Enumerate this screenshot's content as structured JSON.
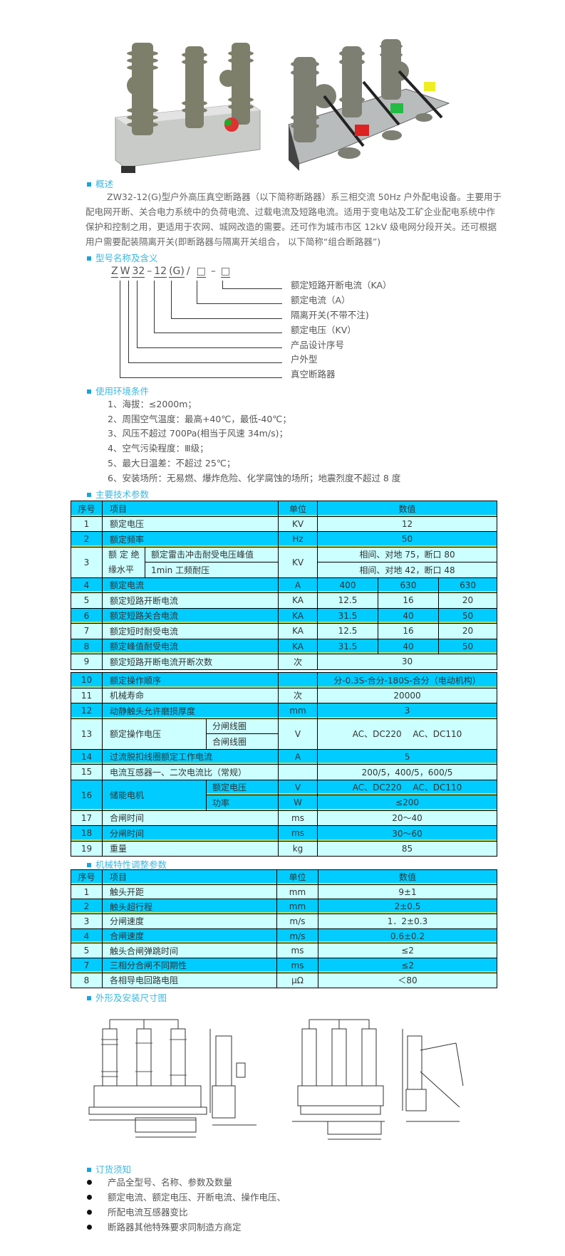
{
  "overview": {
    "heading": "概述",
    "lines": [
      "ZW32-12(G)型户外高压真空断路器（以下简称断路器）系三相交流 50Hz 户外配电设备。主要用于",
      "配电网开断、关合电力系统中的负荷电流、过载电流及短路电流。适用于变电站及工矿企业配电系统中作",
      "保护和控制之用，更适用于农网、城网改造的需要。还可作为城市市区 12kV 级电网分段开关。还可根据",
      "用户需要配装隔离开关(即断路器与隔离开关组合， 以下简称“组合断路器”)"
    ]
  },
  "model": {
    "heading": "型号名称及含义",
    "code": [
      "Z",
      "W",
      "32",
      "–",
      "12",
      "(G)",
      "/",
      "□",
      "–",
      "□"
    ],
    "labels": [
      "额定短路开断电流（KA）",
      "额定电流（A）",
      "隔离开关(不带不注)",
      "额定电压（KV）",
      "产品设计序号",
      "户外型",
      "真空断路器"
    ]
  },
  "environment": {
    "heading": "使用环境条件",
    "items": [
      "1、海拔：≤2000m；",
      "2、周围空气温度：最高+40℃，最低-40℃；",
      "3、风压不超过 700Pa(相当于风速 34m/s)；",
      "4、空气污染程度：Ⅲ级；",
      "5、最大日温差：不超过 25℃；",
      "6、安装场所：无易燃、爆炸危险、化学腐蚀的场所；地震烈度不超过 8 度"
    ]
  },
  "tech": {
    "heading": "主要技术参数",
    "header": [
      "序号",
      "项目",
      "单位",
      "数值"
    ],
    "r1": [
      "1",
      "额定电压",
      "KV",
      "12"
    ],
    "r2": [
      "2",
      "额定频率",
      "Hz",
      "50"
    ],
    "r3": {
      "no": "3",
      "item_a": "额 定 绝",
      "item_b": "缘水平",
      "sub1": "额定雷击冲击耐受电压峰值",
      "sub2": "1min 工频耐压",
      "unit": "KV",
      "val1": "相间、对地 75，断口 80",
      "val2": "相间、对地 42，断口 48"
    },
    "r4": [
      "4",
      "额定电流",
      "A",
      "400",
      "630",
      "630"
    ],
    "r5": [
      "5",
      "额定短路开断电流",
      "KA",
      "12.5",
      "16",
      "20"
    ],
    "r6": [
      "6",
      "额定短路关合电流",
      "KA",
      "31.5",
      "40",
      "50"
    ],
    "r7": [
      "7",
      "额定短时耐受电流",
      "KA",
      "12.5",
      "16",
      "20"
    ],
    "r8": [
      "8",
      "额定峰值耐受电流",
      "KA",
      "31.5",
      "40",
      "50"
    ],
    "r9": [
      "9",
      "额定短路开断电流开断次数",
      "次",
      "30"
    ],
    "r10": [
      "10",
      "额定操作顺序",
      "",
      "分-0.3S-合分-180S-合分（电动机构）"
    ],
    "r11": [
      "11",
      "机械寿命",
      "次",
      "20000"
    ],
    "r12": [
      "12",
      "动静触头允许磨损厚度",
      "mm",
      "3"
    ],
    "r13": {
      "no": "13",
      "item": "额定操作电压",
      "sub1": "分闸线圈",
      "sub2": "合闸线圈",
      "unit": "V",
      "val": "AC、DC220　 AC、DC110"
    },
    "r14": [
      "14",
      "过流脱扣线圈额定工作电流",
      "A",
      "5"
    ],
    "r15": [
      "15",
      "电流互感器一、二次电流比（常规）",
      "",
      "200/5，400/5，600/5"
    ],
    "r16": {
      "no": "16",
      "item": "储能电机",
      "sub1": "额定电压",
      "unit1": "V",
      "val1": "AC、DC220　 AC、DC110",
      "sub2": "功率",
      "unit2": "W",
      "val2": "≤200"
    },
    "r17": [
      "17",
      "合闸时间",
      "ms",
      "20～40"
    ],
    "r18": [
      "18",
      "分闸时间",
      "ms",
      "30～60"
    ],
    "r19": [
      "19",
      "重量",
      "kg",
      "85"
    ]
  },
  "mech": {
    "heading": "机械特性调整参数",
    "header": [
      "序号",
      "项目",
      "单位",
      "数值"
    ],
    "rows": [
      [
        "1",
        "触头开距",
        "mm",
        "9±1"
      ],
      [
        "2",
        "触头超行程",
        "mm",
        "2±0.5"
      ],
      [
        "3",
        "分闸速度",
        "m/s",
        "1．2±0.3"
      ],
      [
        "4",
        "合闸速度",
        "m/s",
        "0.6±0.2"
      ],
      [
        "5",
        "触头合闸弹跳时间",
        "ms",
        "≤2"
      ],
      [
        "7",
        "三相分合闸不同期性",
        "ms",
        "≤2"
      ],
      [
        "8",
        "各相导电回路电阻",
        "μΩ",
        "＜80"
      ]
    ]
  },
  "dimensions": {
    "heading": "外形及安装尺寸图"
  },
  "order": {
    "heading": "订货须知",
    "items": [
      "产品全型号、名称、参数及数量",
      "额定电流、额定电压、开断电流、操作电压、",
      "所配电流互感器变比",
      "断路器其他特殊要求同制造方商定"
    ]
  },
  "colors": {
    "heading": "#3cb7e0",
    "row_dark": "#00ccff",
    "row_light": "#ccffff"
  }
}
